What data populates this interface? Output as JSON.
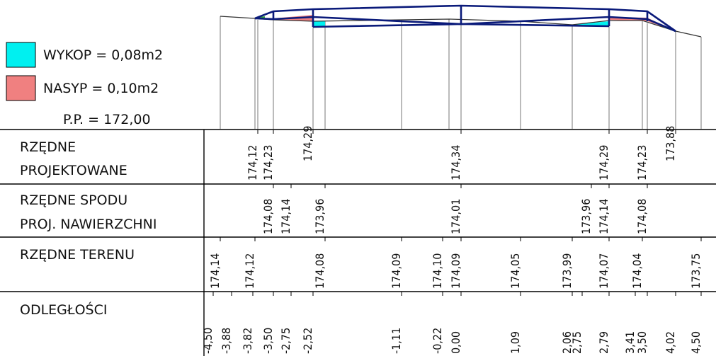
{
  "legend": {
    "cut_label": "WYKOP = 0,08m2",
    "fill_label": "NASYP = 0,10m2",
    "datum_label": "P.P. = 172,00",
    "cut_color": "#00f0f0",
    "fill_color": "#f08080"
  },
  "table": {
    "row1_line1": "RZĘDNE",
    "row1_line2": "PROJEKTOWANE",
    "row2_line1": "RZĘDNE SPODU",
    "row2_line2": "PROJ. NAWIERZCHNI",
    "row3_line1": "RZĘDNE TERENU",
    "row4_line1": "ODLEGŁOŚCI"
  },
  "projected": [
    "174,12",
    "174,23",
    "174,29",
    "174,34",
    "174,29",
    "174,23",
    "173,88"
  ],
  "subgrade": [
    "174,08",
    "174,14",
    "173,96",
    "174,01",
    "173,96",
    "174,14",
    "174,08"
  ],
  "terrain": [
    "174,14",
    "174,12",
    "174,08",
    "174,09",
    "174,10",
    "174,09",
    "174,05",
    "173,99",
    "174,07",
    "174,04",
    "173,75"
  ],
  "distances": [
    "-4,50",
    "-3,88",
    "-3,82",
    "-3,50",
    "-2,75",
    "-2,52",
    "-1,11",
    "-0,22",
    "0,00",
    "1,09",
    "2,06",
    "2,75",
    "2,79",
    "3,41",
    "3,50",
    "4,02",
    "4,50"
  ],
  "colors": {
    "outline": "#0a1a7a",
    "terrain_line": "#333333"
  }
}
